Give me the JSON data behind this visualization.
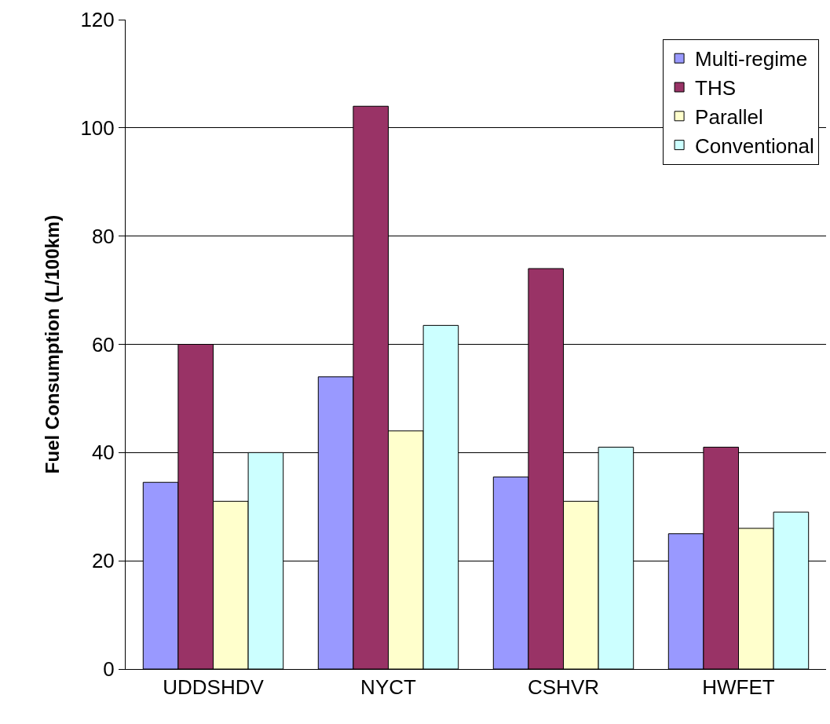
{
  "chart_data": {
    "type": "bar",
    "ylabel": "Fuel Consumption (L/100km)",
    "categories": [
      "UDDSHDV",
      "NYCT",
      "CSHVR",
      "HWFET"
    ],
    "series": [
      {
        "name": "Multi-regime",
        "color": "#9999ff",
        "values": [
          34.5,
          54,
          35.5,
          25
        ]
      },
      {
        "name": "THS",
        "color": "#993366",
        "values": [
          60,
          104,
          74,
          41
        ]
      },
      {
        "name": "Parallel",
        "color": "#ffffcc",
        "values": [
          31,
          44,
          31,
          26
        ]
      },
      {
        "name": "Conventional",
        "color": "#ccffff",
        "values": [
          40,
          63.5,
          41,
          29
        ]
      }
    ],
    "ylim": [
      0,
      120
    ],
    "yticks": [
      0,
      20,
      40,
      60,
      80,
      100,
      120
    ],
    "grid": "y",
    "legend": "top right"
  }
}
